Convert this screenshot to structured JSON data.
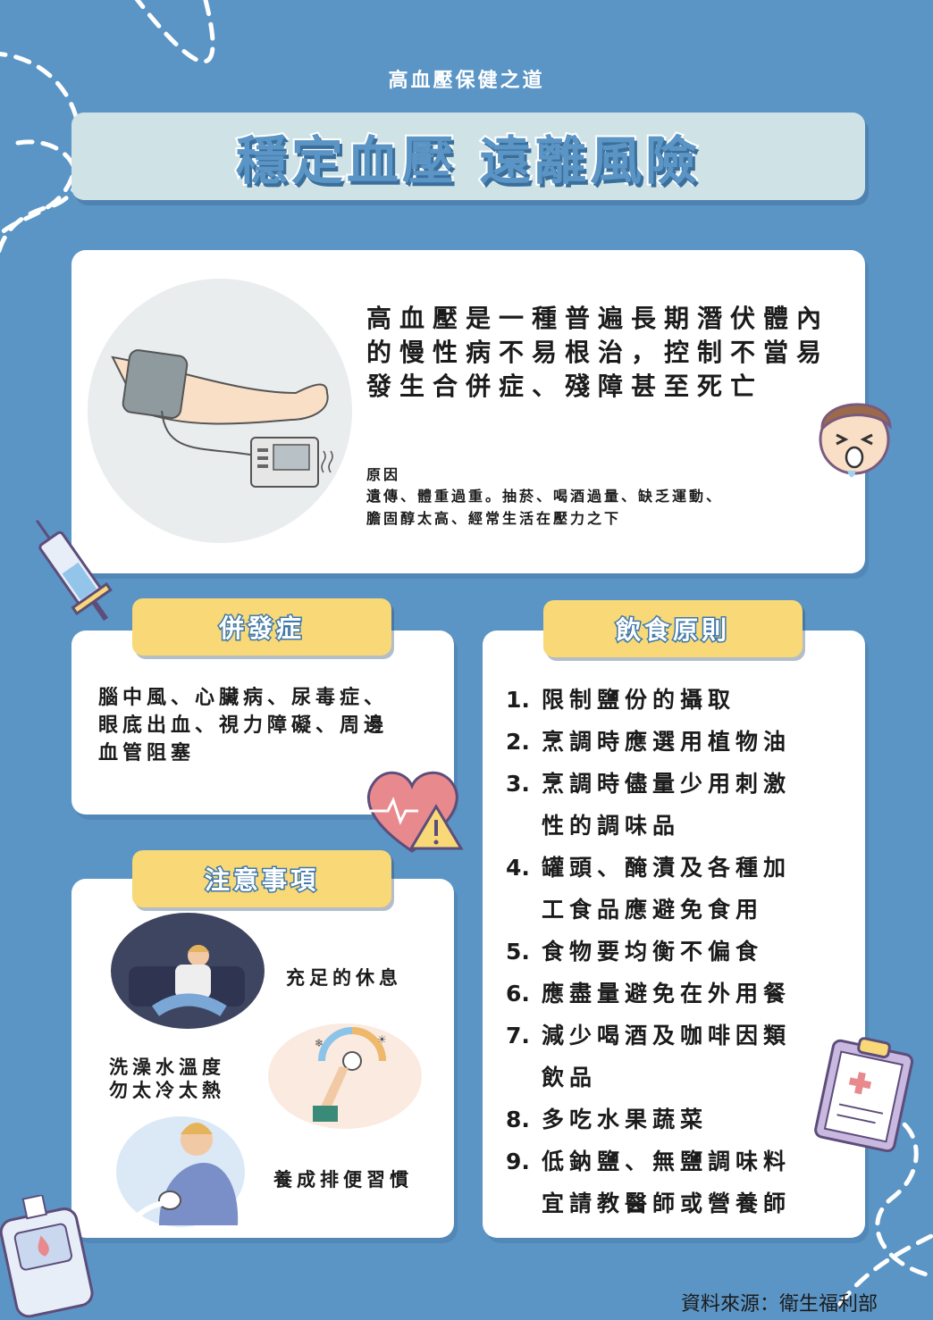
{
  "header": {
    "subtitle": "高血壓保健之道",
    "title": "穩定血壓 遠離風險"
  },
  "intro": {
    "lines": [
      "高血壓是一種普遍長期潛伏體內",
      "的慢性病不易根治，控制不當易",
      "發生合併症、殘障甚至死亡"
    ],
    "cause_label": "原因",
    "cause_lines": [
      "遺傳、體重過重。抽菸、喝酒過量、缺乏運動、",
      "膽固醇太高、經常生活在壓力之下"
    ]
  },
  "complications": {
    "label": "併發症",
    "lines": [
      "腦中風、心臟病、尿毒症、",
      "眼底出血、視力障礙、周邊",
      "血管阻塞"
    ]
  },
  "notes": {
    "label": "注意事項",
    "rest": "充足的休息",
    "bath": [
      "洗澡水溫度",
      "勿太冷太熱"
    ],
    "habit": "養成排便習慣"
  },
  "diet": {
    "label": "飲食原則",
    "items": [
      {
        "num": "1.",
        "lines": [
          "限制鹽份的攝取"
        ]
      },
      {
        "num": "2.",
        "lines": [
          "烹調時應選用植物油"
        ]
      },
      {
        "num": "3.",
        "lines": [
          "烹調時儘量少用刺激",
          "性的調味品"
        ]
      },
      {
        "num": "4.",
        "lines": [
          "罐頭、醃漬及各種加",
          "工食品應避免食用"
        ]
      },
      {
        "num": "5.",
        "lines": [
          "食物要均衡不偏食"
        ]
      },
      {
        "num": "6.",
        "lines": [
          "應盡量避免在外用餐"
        ]
      },
      {
        "num": "7.",
        "lines": [
          "減少喝酒及咖啡因類",
          "飲品"
        ]
      },
      {
        "num": "8.",
        "lines": [
          "多吃水果蔬菜"
        ]
      },
      {
        "num": "9.",
        "lines": [
          "低鈉鹽、無鹽調味料",
          "宜請教醫師或營養師"
        ]
      }
    ]
  },
  "source": "資料來源：衛生福利部",
  "colors": {
    "background": "#5b95c5",
    "title_box": "#cfe3e6",
    "tag": "#f8d877",
    "card": "#ffffff"
  }
}
